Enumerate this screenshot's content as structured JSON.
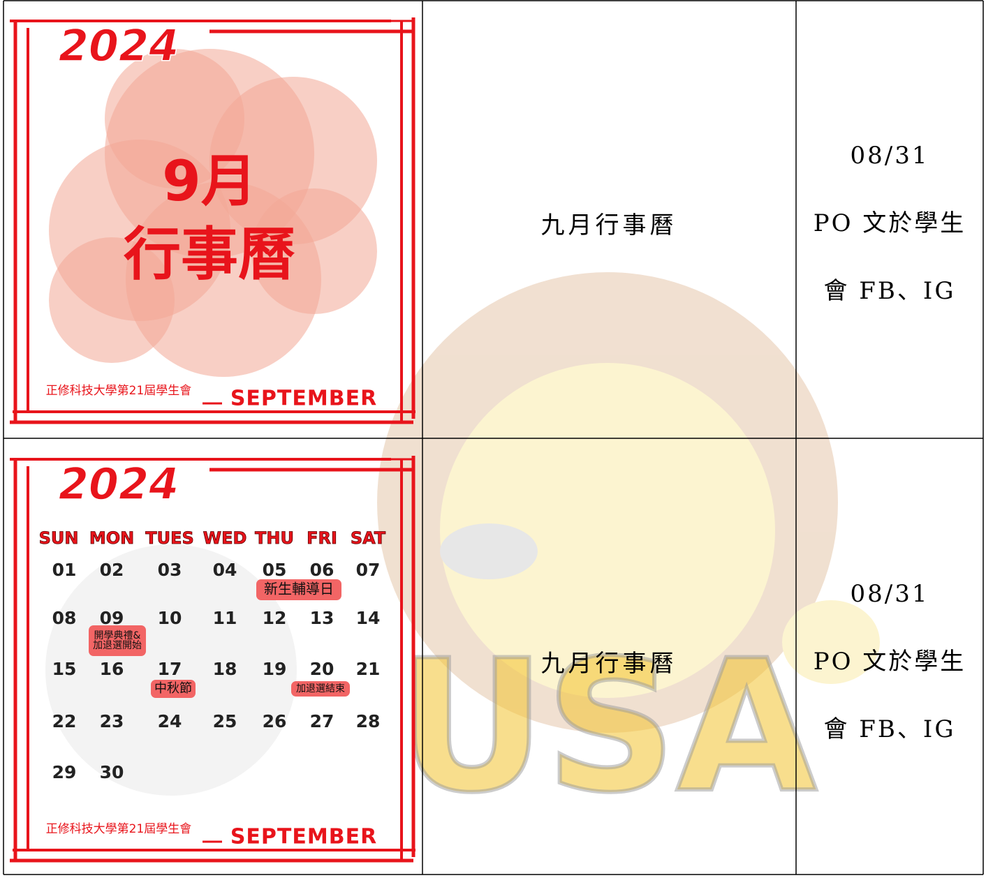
{
  "rows": [
    {
      "poster": {
        "year": "2024",
        "month": "9月",
        "heading": "行事曆",
        "org": "正修科技大學第21屆學生會",
        "month_en": "SEPTEMBER"
      },
      "item": "九月行事曆",
      "schedule": [
        "08/31",
        "PO 文於學生",
        "會 FB、IG"
      ]
    },
    {
      "poster": {
        "year": "2024",
        "weekdays": [
          "SUN",
          "MON",
          "TUES",
          "WED",
          "THU",
          "FRI",
          "SAT"
        ],
        "days": [
          "01",
          "02",
          "03",
          "04",
          "05",
          "06",
          "07",
          "08",
          "09",
          "10",
          "11",
          "12",
          "13",
          "14",
          "15",
          "16",
          "17",
          "18",
          "19",
          "20",
          "21",
          "22",
          "23",
          "24",
          "25",
          "26",
          "27",
          "28",
          "29",
          "30"
        ],
        "events": [
          [
            "新生輔導日"
          ],
          [
            "開學典禮&",
            "加退選開始"
          ],
          [
            "中秋節"
          ],
          [
            "加退選結束"
          ]
        ],
        "org": "正修科技大學第21屆學生會",
        "month_en": "SEPTEMBER"
      },
      "item": "九月行事曆",
      "schedule": [
        "08/31",
        "PO 文於學生",
        "會 FB、IG"
      ]
    }
  ],
  "watermark": "USA"
}
